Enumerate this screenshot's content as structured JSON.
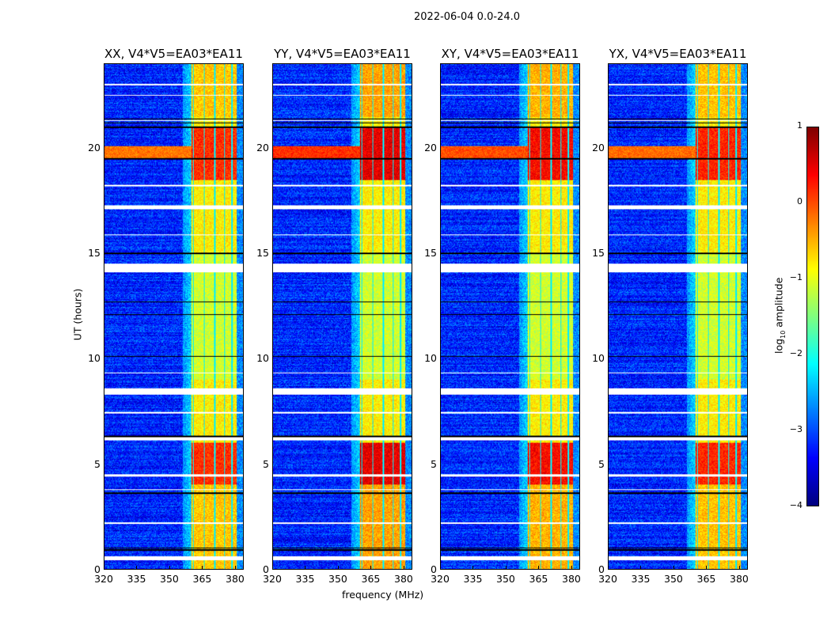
{
  "figure": {
    "suptitle": "2022-06-04 0.0-24.0"
  },
  "chart_data": {
    "type": "heatmap",
    "title": "2022-06-04 0.0-24.0",
    "xlabel": "frequency (MHz)",
    "ylabel": "UT (hours)",
    "xlim": [
      320,
      384
    ],
    "ylim": [
      0,
      24
    ],
    "xticks": [
      320,
      335,
      350,
      365,
      380
    ],
    "yticks": [
      0,
      5,
      10,
      15,
      20
    ],
    "panels": [
      {
        "title": "XX, V4*V5=EA03*EA11",
        "band_strength": 0.0
      },
      {
        "title": "YY, V4*V5=EA03*EA11",
        "band_strength": 0.35
      },
      {
        "title": "XY, V4*V5=EA03*EA11",
        "band_strength": 0.2
      },
      {
        "title": "YX, V4*V5=EA03*EA11",
        "band_strength": 0.05
      }
    ],
    "colorbar": {
      "label": "log₁₀ amplitude",
      "label_base": "log",
      "label_sub": "10",
      "label_rest": " amplitude",
      "range": [
        -4,
        1
      ],
      "ticks": [
        "−4",
        "−3",
        "−2",
        "−1",
        "0",
        "1"
      ],
      "tick_values": [
        -4,
        -3,
        -2,
        -1,
        0,
        1
      ],
      "colormap": "jet"
    },
    "structure": {
      "background_log_amp": -3.2,
      "band_mhz": [
        360,
        381
      ],
      "band_gap_channels_mhz": [
        361,
        366,
        371,
        375.5,
        379
      ],
      "strong_band_hours": [
        [
          18.5,
          21.0
        ],
        [
          4.0,
          6.0
        ],
        [
          0.0,
          4.0
        ],
        [
          21.5,
          24.0
        ]
      ],
      "weak_band_hours": [
        [
          9.0,
          15.0
        ]
      ],
      "flagged_white_rows_hours": [
        [
          0.4,
          0.6
        ],
        [
          2.15,
          2.2
        ],
        [
          3.75,
          3.8
        ],
        [
          4.4,
          4.5
        ],
        [
          6.1,
          6.25
        ],
        [
          7.4,
          7.45
        ],
        [
          8.3,
          8.6
        ],
        [
          9.3,
          9.35
        ],
        [
          14.1,
          14.5
        ],
        [
          15.85,
          15.9
        ],
        [
          17.1,
          17.3
        ],
        [
          18.2,
          18.25
        ],
        [
          21.3,
          21.35
        ],
        [
          22.5,
          22.55
        ],
        [
          23.0,
          23.05
        ]
      ],
      "black_rows_hours": [
        0.9,
        1.0,
        3.6,
        6.3,
        10.1,
        12.1,
        12.7,
        15.0,
        19.5,
        21.0,
        21.2,
        21.4
      ]
    }
  }
}
